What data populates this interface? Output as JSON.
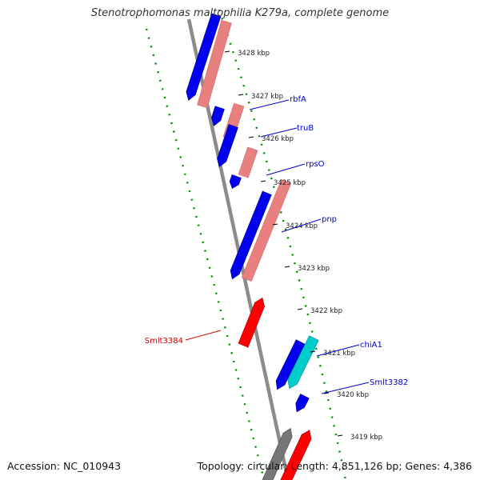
{
  "title": "Stenotrophomonas maltophilia K279a, complete genome",
  "accession": "Accession: NC_010943",
  "topology": "Topology: circular; Length: 4,851,126 bp; Genes: 4,386",
  "colors": {
    "forward_cds": "#0000ee",
    "reverse_cds": "#ff0000",
    "forward_rna": "#e88080",
    "other_cds": "#00cccc",
    "gray_feature": "#777777",
    "backbone": "#8c8c8c",
    "gc_skew": "#008800",
    "forward_label": "#0000cc",
    "reverse_label": "#cc0000"
  },
  "ticks": [
    "3428 kbp",
    "3427 kbp",
    "3426 kbp",
    "3425 kbp",
    "3424 kbp",
    "3423 kbp",
    "3422 kbp",
    "3421 kbp",
    "3420 kbp",
    "3419 kbp"
  ],
  "gene_labels": [
    {
      "text": "rbfA",
      "strand": "forward"
    },
    {
      "text": "truB",
      "strand": "forward"
    },
    {
      "text": "rpsO",
      "strand": "forward"
    },
    {
      "text": "pnp",
      "strand": "forward"
    },
    {
      "text": "chiA1",
      "strand": "forward"
    },
    {
      "text": "Smlt3382",
      "strand": "forward"
    },
    {
      "text": "Smlt3384",
      "strand": "reverse"
    }
  ]
}
